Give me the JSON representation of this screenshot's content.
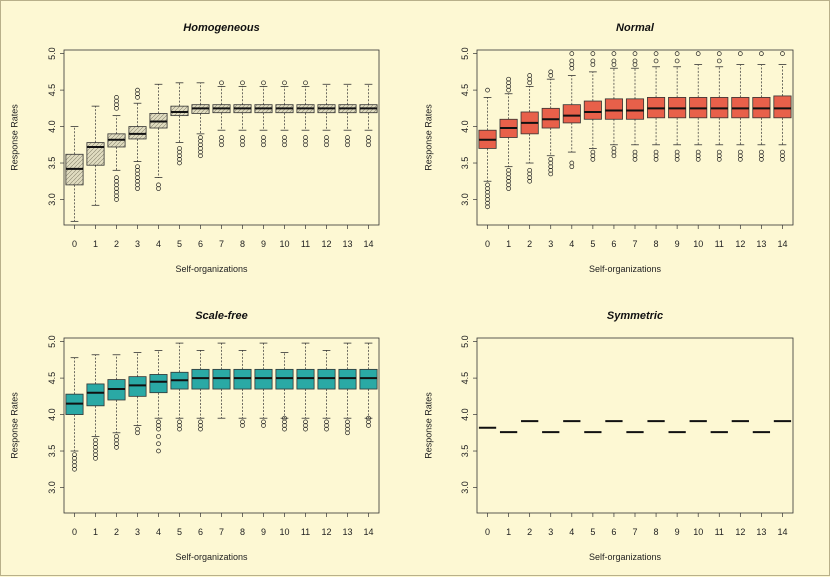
{
  "chart_data": [
    {
      "type": "boxplot",
      "title": "Homogeneous",
      "xlabel": "Self-organizations",
      "ylabel": "Response Rates",
      "categories": [
        "0",
        "1",
        "2",
        "3",
        "4",
        "5",
        "6",
        "7",
        "8",
        "9",
        "10",
        "11",
        "12",
        "13",
        "14"
      ],
      "yticks": [
        "3.0",
        "3.5",
        "4.0",
        "4.5",
        "5.0"
      ],
      "ylim": [
        2.65,
        5.05
      ],
      "fill": "#e0dcc0",
      "hatched": true,
      "boxes": [
        {
          "min": 2.7,
          "q1": 3.2,
          "median": 3.42,
          "q3": 3.62,
          "max": 4.0,
          "outliers": []
        },
        {
          "min": 2.92,
          "q1": 3.47,
          "median": 3.72,
          "q3": 3.78,
          "max": 4.28,
          "outliers": []
        },
        {
          "min": 3.4,
          "q1": 3.72,
          "median": 3.82,
          "q3": 3.9,
          "max": 4.15,
          "outliers": [
            3.0,
            3.05,
            3.1,
            3.15,
            3.2,
            3.25,
            3.3,
            4.25,
            4.3,
            4.35,
            4.4
          ]
        },
        {
          "min": 3.52,
          "q1": 3.83,
          "median": 3.9,
          "q3": 4.0,
          "max": 4.32,
          "outliers": [
            3.15,
            3.2,
            3.25,
            3.3,
            3.35,
            3.4,
            3.45,
            4.4,
            4.45,
            4.5
          ]
        },
        {
          "min": 3.3,
          "q1": 3.98,
          "median": 4.07,
          "q3": 4.18,
          "max": 4.58,
          "outliers": [
            3.15,
            3.2
          ]
        },
        {
          "min": 3.78,
          "q1": 4.15,
          "median": 4.2,
          "q3": 4.28,
          "max": 4.6,
          "outliers": [
            3.5,
            3.55,
            3.6,
            3.65,
            3.7
          ]
        },
        {
          "min": 3.9,
          "q1": 4.18,
          "median": 4.25,
          "q3": 4.3,
          "max": 4.6,
          "outliers": [
            3.6,
            3.65,
            3.7,
            3.75,
            3.8,
            3.85
          ]
        },
        {
          "min": 3.95,
          "q1": 4.19,
          "median": 4.25,
          "q3": 4.3,
          "max": 4.55,
          "outliers": [
            3.75,
            3.8,
            3.85,
            4.6
          ]
        },
        {
          "min": 3.95,
          "q1": 4.19,
          "median": 4.25,
          "q3": 4.3,
          "max": 4.55,
          "outliers": [
            3.75,
            3.8,
            3.85,
            4.6
          ]
        },
        {
          "min": 3.95,
          "q1": 4.19,
          "median": 4.25,
          "q3": 4.3,
          "max": 4.55,
          "outliers": [
            3.75,
            3.8,
            3.85,
            4.6
          ]
        },
        {
          "min": 3.95,
          "q1": 4.19,
          "median": 4.25,
          "q3": 4.3,
          "max": 4.55,
          "outliers": [
            3.75,
            3.8,
            3.85,
            4.6
          ]
        },
        {
          "min": 3.95,
          "q1": 4.19,
          "median": 4.25,
          "q3": 4.3,
          "max": 4.55,
          "outliers": [
            3.75,
            3.8,
            3.85,
            4.6
          ]
        },
        {
          "min": 3.95,
          "q1": 4.19,
          "median": 4.25,
          "q3": 4.3,
          "max": 4.58,
          "outliers": [
            3.75,
            3.8,
            3.85
          ]
        },
        {
          "min": 3.95,
          "q1": 4.19,
          "median": 4.25,
          "q3": 4.3,
          "max": 4.58,
          "outliers": [
            3.75,
            3.8,
            3.85
          ]
        },
        {
          "min": 3.95,
          "q1": 4.19,
          "median": 4.25,
          "q3": 4.3,
          "max": 4.58,
          "outliers": [
            3.75,
            3.8,
            3.85
          ]
        }
      ]
    },
    {
      "type": "boxplot",
      "title": "Normal",
      "xlabel": "Self-organizations",
      "ylabel": "Response Rates",
      "categories": [
        "0",
        "1",
        "2",
        "3",
        "4",
        "5",
        "6",
        "7",
        "8",
        "9",
        "10",
        "11",
        "12",
        "13",
        "14"
      ],
      "yticks": [
        "3.0",
        "3.5",
        "4.0",
        "4.5",
        "5.0"
      ],
      "ylim": [
        2.65,
        5.05
      ],
      "fill": "#e8604a",
      "hatched": false,
      "boxes": [
        {
          "min": 3.25,
          "q1": 3.7,
          "median": 3.82,
          "q3": 3.95,
          "max": 4.4,
          "outliers": [
            2.9,
            2.95,
            3.0,
            3.05,
            3.1,
            3.15,
            3.2,
            4.5
          ]
        },
        {
          "min": 3.45,
          "q1": 3.85,
          "median": 3.98,
          "q3": 4.1,
          "max": 4.45,
          "outliers": [
            3.15,
            3.2,
            3.25,
            3.3,
            3.35,
            3.4,
            4.5,
            4.55,
            4.6,
            4.65
          ]
        },
        {
          "min": 3.5,
          "q1": 3.9,
          "median": 4.05,
          "q3": 4.2,
          "max": 4.55,
          "outliers": [
            3.25,
            3.3,
            3.35,
            3.4,
            4.6,
            4.65,
            4.7
          ]
        },
        {
          "min": 3.6,
          "q1": 3.98,
          "median": 4.1,
          "q3": 4.25,
          "max": 4.65,
          "outliers": [
            3.35,
            3.4,
            3.45,
            3.5,
            3.55,
            4.7,
            4.75
          ]
        },
        {
          "min": 3.65,
          "q1": 4.05,
          "median": 4.15,
          "q3": 4.3,
          "max": 4.7,
          "outliers": [
            3.45,
            3.5,
            4.8,
            4.85,
            4.9,
            5.0
          ]
        },
        {
          "min": 3.7,
          "q1": 4.1,
          "median": 4.2,
          "q3": 4.35,
          "max": 4.75,
          "outliers": [
            3.55,
            3.6,
            3.65,
            4.85,
            4.9,
            5.0
          ]
        },
        {
          "min": 3.75,
          "q1": 4.1,
          "median": 4.22,
          "q3": 4.38,
          "max": 4.8,
          "outliers": [
            3.6,
            3.65,
            3.7,
            4.85,
            4.9,
            5.0
          ]
        },
        {
          "min": 3.75,
          "q1": 4.1,
          "median": 4.22,
          "q3": 4.38,
          "max": 4.8,
          "outliers": [
            3.55,
            3.6,
            3.65,
            4.85,
            4.9,
            5.0
          ]
        },
        {
          "min": 3.75,
          "q1": 4.12,
          "median": 4.25,
          "q3": 4.4,
          "max": 4.82,
          "outliers": [
            3.55,
            3.6,
            3.65,
            4.9,
            5.0
          ]
        },
        {
          "min": 3.75,
          "q1": 4.12,
          "median": 4.25,
          "q3": 4.4,
          "max": 4.82,
          "outliers": [
            3.55,
            3.6,
            3.65,
            4.9,
            5.0
          ]
        },
        {
          "min": 3.75,
          "q1": 4.12,
          "median": 4.25,
          "q3": 4.4,
          "max": 4.85,
          "outliers": [
            3.55,
            3.6,
            3.65,
            5.0
          ]
        },
        {
          "min": 3.75,
          "q1": 4.12,
          "median": 4.25,
          "q3": 4.4,
          "max": 4.82,
          "outliers": [
            3.55,
            3.6,
            3.65,
            4.9,
            5.0
          ]
        },
        {
          "min": 3.75,
          "q1": 4.12,
          "median": 4.25,
          "q3": 4.4,
          "max": 4.85,
          "outliers": [
            3.55,
            3.6,
            3.65,
            5.0
          ]
        },
        {
          "min": 3.75,
          "q1": 4.12,
          "median": 4.25,
          "q3": 4.4,
          "max": 4.85,
          "outliers": [
            3.55,
            3.6,
            3.65,
            5.0
          ]
        },
        {
          "min": 3.75,
          "q1": 4.12,
          "median": 4.25,
          "q3": 4.42,
          "max": 4.85,
          "outliers": [
            3.55,
            3.6,
            3.65,
            5.0
          ]
        }
      ]
    },
    {
      "type": "boxplot",
      "title": "Scale-free",
      "xlabel": "Self-organizations",
      "ylabel": "Response Rates",
      "categories": [
        "0",
        "1",
        "2",
        "3",
        "4",
        "5",
        "6",
        "7",
        "8",
        "9",
        "10",
        "11",
        "12",
        "13",
        "14"
      ],
      "yticks": [
        "3.0",
        "3.5",
        "4.0",
        "4.5",
        "5.0"
      ],
      "ylim": [
        2.65,
        5.05
      ],
      "fill": "#2aa9a5",
      "hatched": false,
      "boxes": [
        {
          "min": 3.5,
          "q1": 4.0,
          "median": 4.15,
          "q3": 4.28,
          "max": 4.78,
          "outliers": [
            3.25,
            3.3,
            3.35,
            3.4,
            3.45
          ]
        },
        {
          "min": 3.7,
          "q1": 4.12,
          "median": 4.3,
          "q3": 4.42,
          "max": 4.82,
          "outliers": [
            3.4,
            3.45,
            3.5,
            3.55,
            3.6,
            3.65
          ]
        },
        {
          "min": 3.75,
          "q1": 4.2,
          "median": 4.35,
          "q3": 4.48,
          "max": 4.82,
          "outliers": [
            3.55,
            3.6,
            3.65,
            3.7
          ]
        },
        {
          "min": 3.85,
          "q1": 4.25,
          "median": 4.4,
          "q3": 4.52,
          "max": 4.85,
          "outliers": [
            3.75,
            3.8
          ]
        },
        {
          "min": 3.95,
          "q1": 4.3,
          "median": 4.45,
          "q3": 4.55,
          "max": 4.88,
          "outliers": [
            3.5,
            3.6,
            3.7,
            3.8,
            3.85,
            3.9
          ]
        },
        {
          "min": 3.95,
          "q1": 4.35,
          "median": 4.47,
          "q3": 4.58,
          "max": 4.98,
          "outliers": [
            3.8,
            3.85,
            3.9
          ]
        },
        {
          "min": 3.95,
          "q1": 4.35,
          "median": 4.5,
          "q3": 4.62,
          "max": 4.88,
          "outliers": [
            3.8,
            3.85,
            3.9
          ]
        },
        {
          "min": 3.95,
          "q1": 4.35,
          "median": 4.5,
          "q3": 4.62,
          "max": 4.98,
          "outliers": []
        },
        {
          "min": 3.95,
          "q1": 4.35,
          "median": 4.5,
          "q3": 4.62,
          "max": 4.88,
          "outliers": [
            3.85,
            3.9
          ]
        },
        {
          "min": 3.95,
          "q1": 4.35,
          "median": 4.5,
          "q3": 4.62,
          "max": 4.98,
          "outliers": [
            3.85,
            3.9
          ]
        },
        {
          "min": 3.95,
          "q1": 4.35,
          "median": 4.5,
          "q3": 4.62,
          "max": 4.85,
          "outliers": [
            3.8,
            3.85,
            3.9,
            3.95
          ]
        },
        {
          "min": 3.95,
          "q1": 4.35,
          "median": 4.5,
          "q3": 4.62,
          "max": 4.98,
          "outliers": [
            3.8,
            3.85,
            3.9
          ]
        },
        {
          "min": 3.95,
          "q1": 4.35,
          "median": 4.5,
          "q3": 4.62,
          "max": 4.88,
          "outliers": [
            3.8,
            3.85,
            3.9
          ]
        },
        {
          "min": 3.95,
          "q1": 4.35,
          "median": 4.5,
          "q3": 4.62,
          "max": 4.98,
          "outliers": [
            3.75,
            3.8,
            3.85,
            3.9
          ]
        },
        {
          "min": 3.95,
          "q1": 4.35,
          "median": 4.5,
          "q3": 4.62,
          "max": 4.98,
          "outliers": [
            3.85,
            3.9,
            3.95
          ]
        }
      ]
    },
    {
      "type": "boxplot",
      "title": "Symmetric",
      "xlabel": "Self-organizations",
      "ylabel": "Response Rates",
      "categories": [
        "0",
        "1",
        "2",
        "3",
        "4",
        "5",
        "6",
        "7",
        "8",
        "9",
        "10",
        "11",
        "12",
        "13",
        "14"
      ],
      "yticks": [
        "3.0",
        "3.5",
        "4.0",
        "4.5",
        "5.0"
      ],
      "ylim": [
        2.65,
        5.05
      ],
      "fill": "#ffffff",
      "hatched": false,
      "boxes": [
        {
          "min": 3.82,
          "q1": 3.82,
          "median": 3.82,
          "q3": 3.82,
          "max": 3.82,
          "outliers": []
        },
        {
          "min": 3.76,
          "q1": 3.76,
          "median": 3.76,
          "q3": 3.76,
          "max": 3.76,
          "outliers": []
        },
        {
          "min": 3.91,
          "q1": 3.91,
          "median": 3.91,
          "q3": 3.91,
          "max": 3.91,
          "outliers": []
        },
        {
          "min": 3.76,
          "q1": 3.76,
          "median": 3.76,
          "q3": 3.76,
          "max": 3.76,
          "outliers": []
        },
        {
          "min": 3.91,
          "q1": 3.91,
          "median": 3.91,
          "q3": 3.91,
          "max": 3.91,
          "outliers": []
        },
        {
          "min": 3.76,
          "q1": 3.76,
          "median": 3.76,
          "q3": 3.76,
          "max": 3.76,
          "outliers": []
        },
        {
          "min": 3.91,
          "q1": 3.91,
          "median": 3.91,
          "q3": 3.91,
          "max": 3.91,
          "outliers": []
        },
        {
          "min": 3.76,
          "q1": 3.76,
          "median": 3.76,
          "q3": 3.76,
          "max": 3.76,
          "outliers": []
        },
        {
          "min": 3.91,
          "q1": 3.91,
          "median": 3.91,
          "q3": 3.91,
          "max": 3.91,
          "outliers": []
        },
        {
          "min": 3.76,
          "q1": 3.76,
          "median": 3.76,
          "q3": 3.76,
          "max": 3.76,
          "outliers": []
        },
        {
          "min": 3.91,
          "q1": 3.91,
          "median": 3.91,
          "q3": 3.91,
          "max": 3.91,
          "outliers": []
        },
        {
          "min": 3.76,
          "q1": 3.76,
          "median": 3.76,
          "q3": 3.76,
          "max": 3.76,
          "outliers": []
        },
        {
          "min": 3.91,
          "q1": 3.91,
          "median": 3.91,
          "q3": 3.91,
          "max": 3.91,
          "outliers": []
        },
        {
          "min": 3.76,
          "q1": 3.76,
          "median": 3.76,
          "q3": 3.76,
          "max": 3.76,
          "outliers": []
        },
        {
          "min": 3.91,
          "q1": 3.91,
          "median": 3.91,
          "q3": 3.91,
          "max": 3.91,
          "outliers": []
        }
      ]
    }
  ]
}
